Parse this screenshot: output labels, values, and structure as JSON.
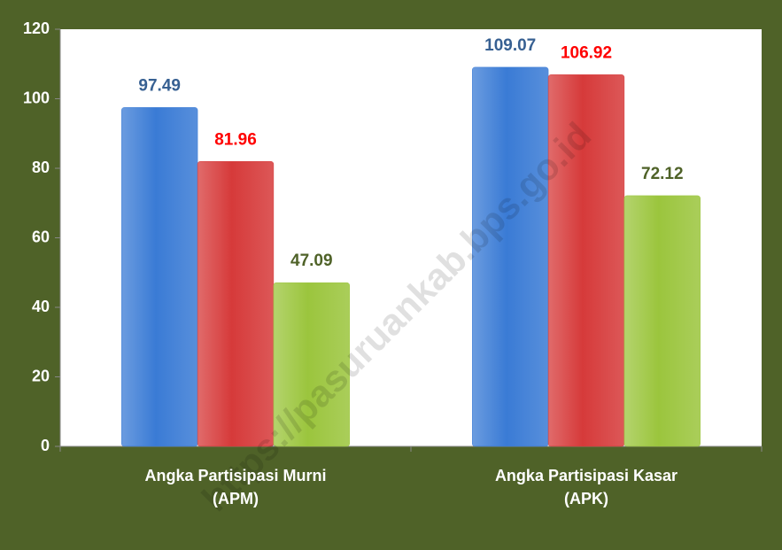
{
  "chart_data": {
    "type": "bar",
    "categories": [
      "Angka Partisipasi Murni\n(APM)",
      "Angka Partisipasi Kasar\n(APK)"
    ],
    "series": [
      {
        "color": "#3a7bd5",
        "label_color": "#376092",
        "values": [
          97.49,
          109.07
        ]
      },
      {
        "color": "#d63a3a",
        "label_color": "#ff0000",
        "values": [
          81.96,
          106.92
        ]
      },
      {
        "color": "#9bc53d",
        "label_color": "#4f6228",
        "values": [
          47.09,
          72.12
        ]
      }
    ],
    "ylim": [
      0,
      120
    ],
    "yticks": [
      0,
      20,
      40,
      60,
      80,
      100,
      120
    ],
    "grid": false,
    "watermark": "https://pasuruankab.bps.go.id"
  }
}
